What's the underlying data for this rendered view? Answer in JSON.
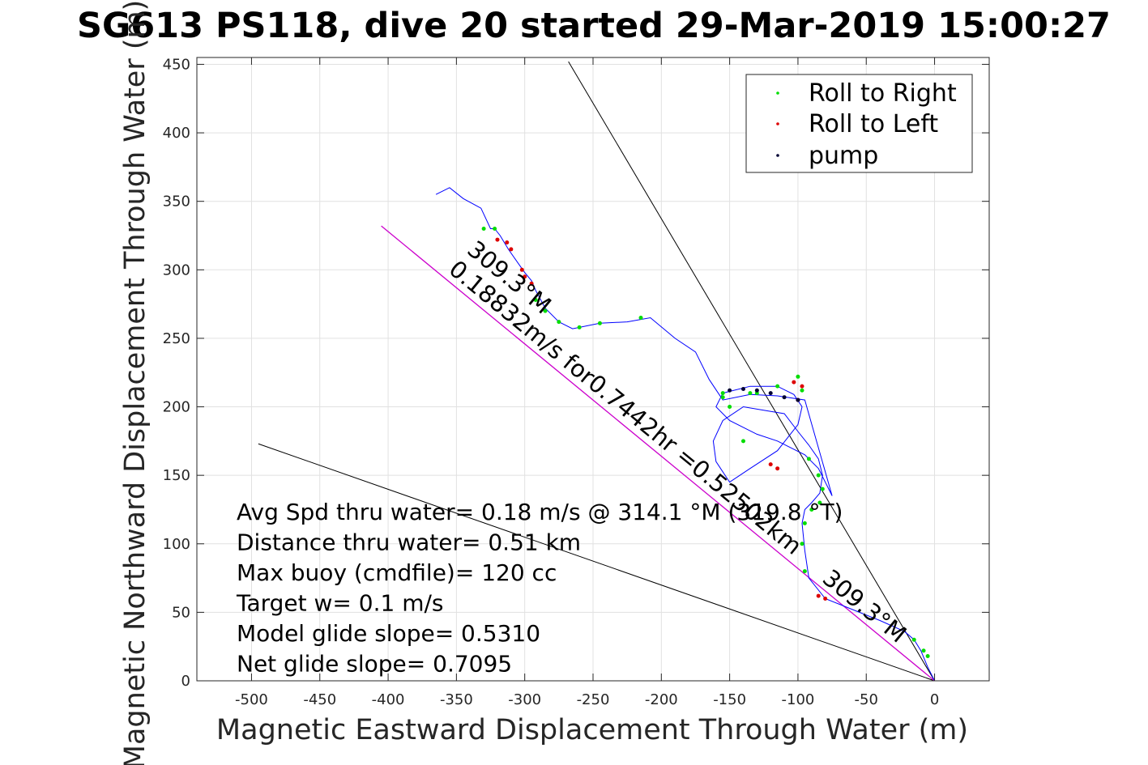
{
  "chart_data": {
    "type": "line",
    "title": "SG613 PS118, dive 20 started 29-Mar-2019 15:00:27",
    "xlabel": "Magnetic Eastward Displacement Through Water (m)",
    "ylabel": "Magnetic Northward Displacement Through Water (m)",
    "xlim": [
      -540,
      40
    ],
    "ylim": [
      0,
      455
    ],
    "xticks": [
      -500,
      -450,
      -400,
      -350,
      -300,
      -250,
      -200,
      -150,
      -100,
      -50,
      0
    ],
    "yticks": [
      0,
      50,
      100,
      150,
      200,
      250,
      300,
      350,
      400,
      450
    ],
    "grid": true,
    "legend_position": "top-right",
    "legend": [
      {
        "label": "Roll to Right",
        "color": "#00dd00"
      },
      {
        "label": "Roll to Left",
        "color": "#dd0000"
      },
      {
        "label": "pump",
        "color": "#000033"
      }
    ],
    "track": {
      "name": "track",
      "color": "#0000ff",
      "x": [
        0,
        -5,
        -10,
        -15,
        -22,
        -40,
        -60,
        -80,
        -92,
        -95,
        -97,
        -95,
        -90,
        -84,
        -82,
        -85,
        -92,
        -100,
        -110,
        -122,
        -140,
        -155,
        -162,
        -160,
        -150,
        -135,
        -115,
        -100,
        -97,
        -103,
        -115,
        -135,
        -155,
        -160,
        -150,
        -130,
        -115,
        -95,
        -85,
        -75,
        -95,
        -115,
        -135,
        -155,
        -165,
        -175,
        -190,
        -208,
        -225,
        -245,
        -265,
        -275,
        -285,
        -292,
        -295,
        -300,
        -305,
        -312,
        -318,
        -322,
        -325,
        -332,
        -345,
        -355,
        -365
      ],
      "y": [
        0,
        10,
        22,
        30,
        36,
        44,
        52,
        60,
        75,
        95,
        115,
        125,
        130,
        137,
        150,
        162,
        172,
        182,
        195,
        197,
        200,
        190,
        175,
        160,
        145,
        155,
        168,
        187,
        200,
        209,
        215,
        215,
        210,
        200,
        190,
        180,
        175,
        165,
        155,
        135,
        205,
        208,
        209,
        205,
        220,
        240,
        250,
        265,
        262,
        261,
        257,
        262,
        272,
        285,
        292,
        298,
        305,
        315,
        325,
        330,
        330,
        345,
        352,
        360,
        355
      ]
    },
    "roll_right": {
      "x": [
        -15,
        -8,
        -5,
        -95,
        -97,
        -95,
        -90,
        -84,
        -82,
        -85,
        -92,
        -140,
        -150,
        -155,
        -115,
        -100,
        -97,
        -130,
        -135,
        -155,
        -260,
        -275,
        -285,
        -292,
        -215,
        -245,
        -322,
        -330
      ],
      "y": [
        30,
        22,
        18,
        80,
        100,
        115,
        125,
        130,
        140,
        150,
        162,
        175,
        200,
        210,
        215,
        222,
        212,
        210,
        210,
        207,
        258,
        262,
        270,
        278,
        265,
        261,
        330,
        330
      ]
    },
    "roll_left": {
      "x": [
        -80,
        -85,
        -115,
        -120,
        -100,
        -97,
        -103,
        -310,
        -313,
        -320,
        -295,
        -300,
        -302
      ],
      "y": [
        60,
        62,
        155,
        158,
        205,
        215,
        218,
        315,
        320,
        322,
        290,
        295,
        300
      ]
    },
    "pump": {
      "x": [
        -150,
        -140,
        -130,
        -120,
        -110,
        -100
      ],
      "y": [
        212,
        213,
        212,
        210,
        207,
        205
      ]
    },
    "heading_line": {
      "name": "0.18832m/s for0.7442hr =0.52502km",
      "x": [
        0,
        -405
      ],
      "y": [
        0,
        332
      ],
      "color": "#cc00cc"
    },
    "reference_lines": [
      {
        "x": [
          0,
          -268
        ],
        "y": [
          0,
          452
        ]
      },
      {
        "x": [
          0,
          -495
        ],
        "y": [
          0,
          173
        ]
      }
    ],
    "annotations": [
      {
        "text": "Avg Spd thru water=  0.18 m/s @ 314.1 °M (319.8 °T)"
      },
      {
        "text": "Distance thru water=  0.51 km"
      },
      {
        "text": "Max buoy (cmdfile)= 120 cc"
      },
      {
        "text": "Target w= 0.1 m/s"
      },
      {
        "text": "Model glide slope= 0.5310"
      },
      {
        "text": "Net glide slope= 0.7095"
      }
    ],
    "rotated_labels": [
      {
        "text": "309.3°M",
        "x": -315,
        "y": 290,
        "angle": 39.4
      },
      {
        "text": "0.18832m/s for0.7442hr =0.52502km",
        "x": -230,
        "y": 195,
        "angle": 39.4
      },
      {
        "text": "309.3°M",
        "x": -55,
        "y": 50,
        "angle": 39.4
      }
    ]
  }
}
